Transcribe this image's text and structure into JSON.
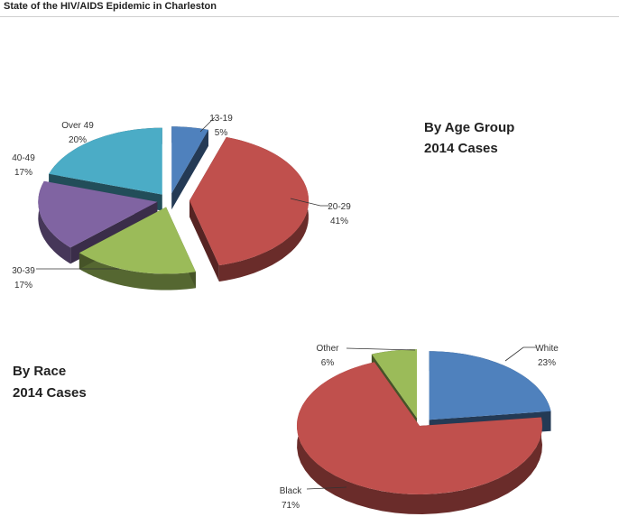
{
  "page": {
    "title": "State of the HIV/AIDS Epidemic in Charleston"
  },
  "chart_data": [
    {
      "type": "pie",
      "title": "By Age Group",
      "subtitle": "2014 Cases",
      "categories": [
        "13-19",
        "20-29",
        "30-39",
        "40-49",
        "Over 49"
      ],
      "values": [
        5,
        41,
        17,
        17,
        20
      ],
      "value_labels": [
        "5%",
        "41%",
        "17%",
        "17%",
        "20%"
      ],
      "colors": [
        "#4f81bd",
        "#c0504d",
        "#9bbb59",
        "#8064a2",
        "#4bacc6"
      ],
      "style": "3d-exploded"
    },
    {
      "type": "pie",
      "title": "By Race",
      "subtitle": "2014 Cases",
      "categories": [
        "White",
        "Black",
        "Other"
      ],
      "values": [
        23,
        71,
        6
      ],
      "value_labels": [
        "23%",
        "71%",
        "6%"
      ],
      "colors": [
        "#4f81bd",
        "#c0504d",
        "#9bbb59"
      ],
      "style": "3d-exploded"
    }
  ]
}
